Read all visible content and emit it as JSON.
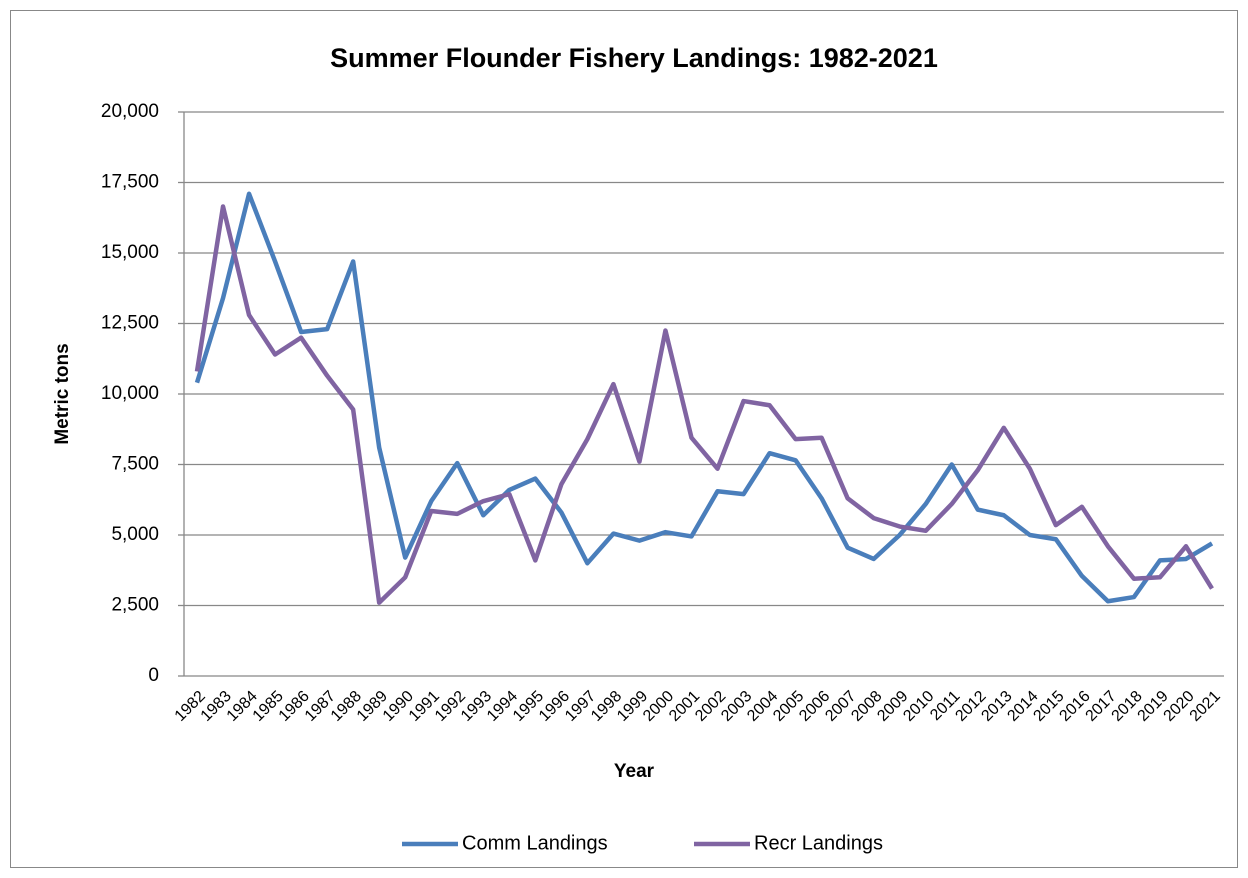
{
  "chart_data": {
    "type": "line",
    "title": "Summer Flounder Fishery Landings: 1982-2021",
    "x_label": "Year",
    "y_label": "Metric tons",
    "categories": [
      "1982",
      "1983",
      "1984",
      "1985",
      "1986",
      "1987",
      "1988",
      "1989",
      "1990",
      "1991",
      "1992",
      "1993",
      "1994",
      "1995",
      "1996",
      "1997",
      "1998",
      "1999",
      "2000",
      "2001",
      "2002",
      "2003",
      "2004",
      "2005",
      "2006",
      "2007",
      "2008",
      "2009",
      "2010",
      "2011",
      "2012",
      "2013",
      "2014",
      "2015",
      "2016",
      "2017",
      "2018",
      "2019",
      "2020",
      "2021"
    ],
    "series": [
      {
        "name": "Comm Landings",
        "color": "#4a7ebb",
        "values": [
          10400,
          13400,
          17100,
          14700,
          12200,
          12300,
          14700,
          8100,
          4200,
          6200,
          7550,
          5700,
          6600,
          7000,
          5800,
          4000,
          5050,
          4800,
          5100,
          4950,
          6550,
          6450,
          7900,
          7650,
          6300,
          4550,
          4150,
          5000,
          6100,
          7500,
          5900,
          5700,
          5000,
          4850,
          3550,
          2650,
          2800,
          4100,
          4150,
          4700
        ]
      },
      {
        "name": "Recr Landings",
        "color": "#8064a2",
        "values": [
          10800,
          16650,
          12800,
          11400,
          12000,
          10650,
          9450,
          2600,
          3500,
          5850,
          5750,
          6200,
          6450,
          4100,
          6800,
          8400,
          10350,
          7600,
          12250,
          8450,
          7350,
          9750,
          9600,
          8400,
          8450,
          6300,
          5600,
          5300,
          5150,
          6100,
          7300,
          8800,
          7350,
          5350,
          6000,
          4600,
          3450,
          3500,
          4600,
          3100
        ]
      }
    ],
    "ylim": [
      0,
      20000
    ],
    "yticks": [
      0,
      {
        "value": 2500,
        "label": "2,500"
      },
      {
        "value": 5000,
        "label": "5,000"
      },
      {
        "value": 7500,
        "label": "7,500"
      },
      {
        "value": 10000,
        "label": "10,000"
      },
      {
        "value": 12500,
        "label": "12,500"
      },
      {
        "value": 15000,
        "label": "15,000"
      },
      {
        "value": 17500,
        "label": "17,500"
      },
      {
        "value": 20000,
        "label": "20,000"
      }
    ],
    "grid": true,
    "legend": "bottom"
  }
}
